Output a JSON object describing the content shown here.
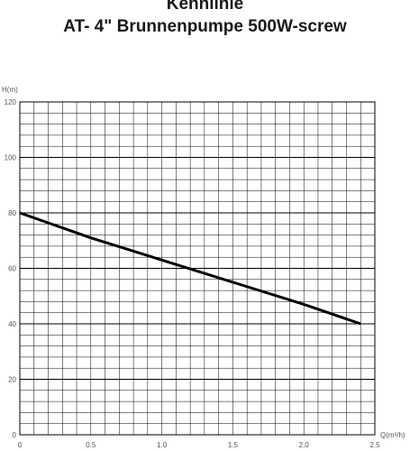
{
  "title_line1": "Kennlinie",
  "title_line2": "AT- 4\" Brunnenpumpe 500W-screw",
  "chart_data": {
    "type": "line",
    "xlabel": "Q(m³/h)",
    "ylabel": "H(m)",
    "xlim": [
      0,
      2.5
    ],
    "ylim": [
      0,
      120
    ],
    "x_ticks": [
      "0",
      "0.5",
      "1.0",
      "1.5",
      "2.0",
      "2.5"
    ],
    "x_tick_values": [
      0,
      0.5,
      1.0,
      1.5,
      2.0,
      2.5
    ],
    "y_ticks": [
      "0",
      "20",
      "40",
      "60",
      "80",
      "100",
      "120"
    ],
    "y_tick_values": [
      0,
      20,
      40,
      60,
      80,
      100,
      120
    ],
    "grid": true,
    "series": [
      {
        "x": [
          0,
          0.5,
          1.0,
          1.5,
          2.0,
          2.4
        ],
        "y": [
          80,
          71,
          63,
          55,
          47,
          40
        ]
      }
    ],
    "colors": {
      "line": "#000000",
      "grid": "#000000",
      "text": "#555555"
    }
  }
}
